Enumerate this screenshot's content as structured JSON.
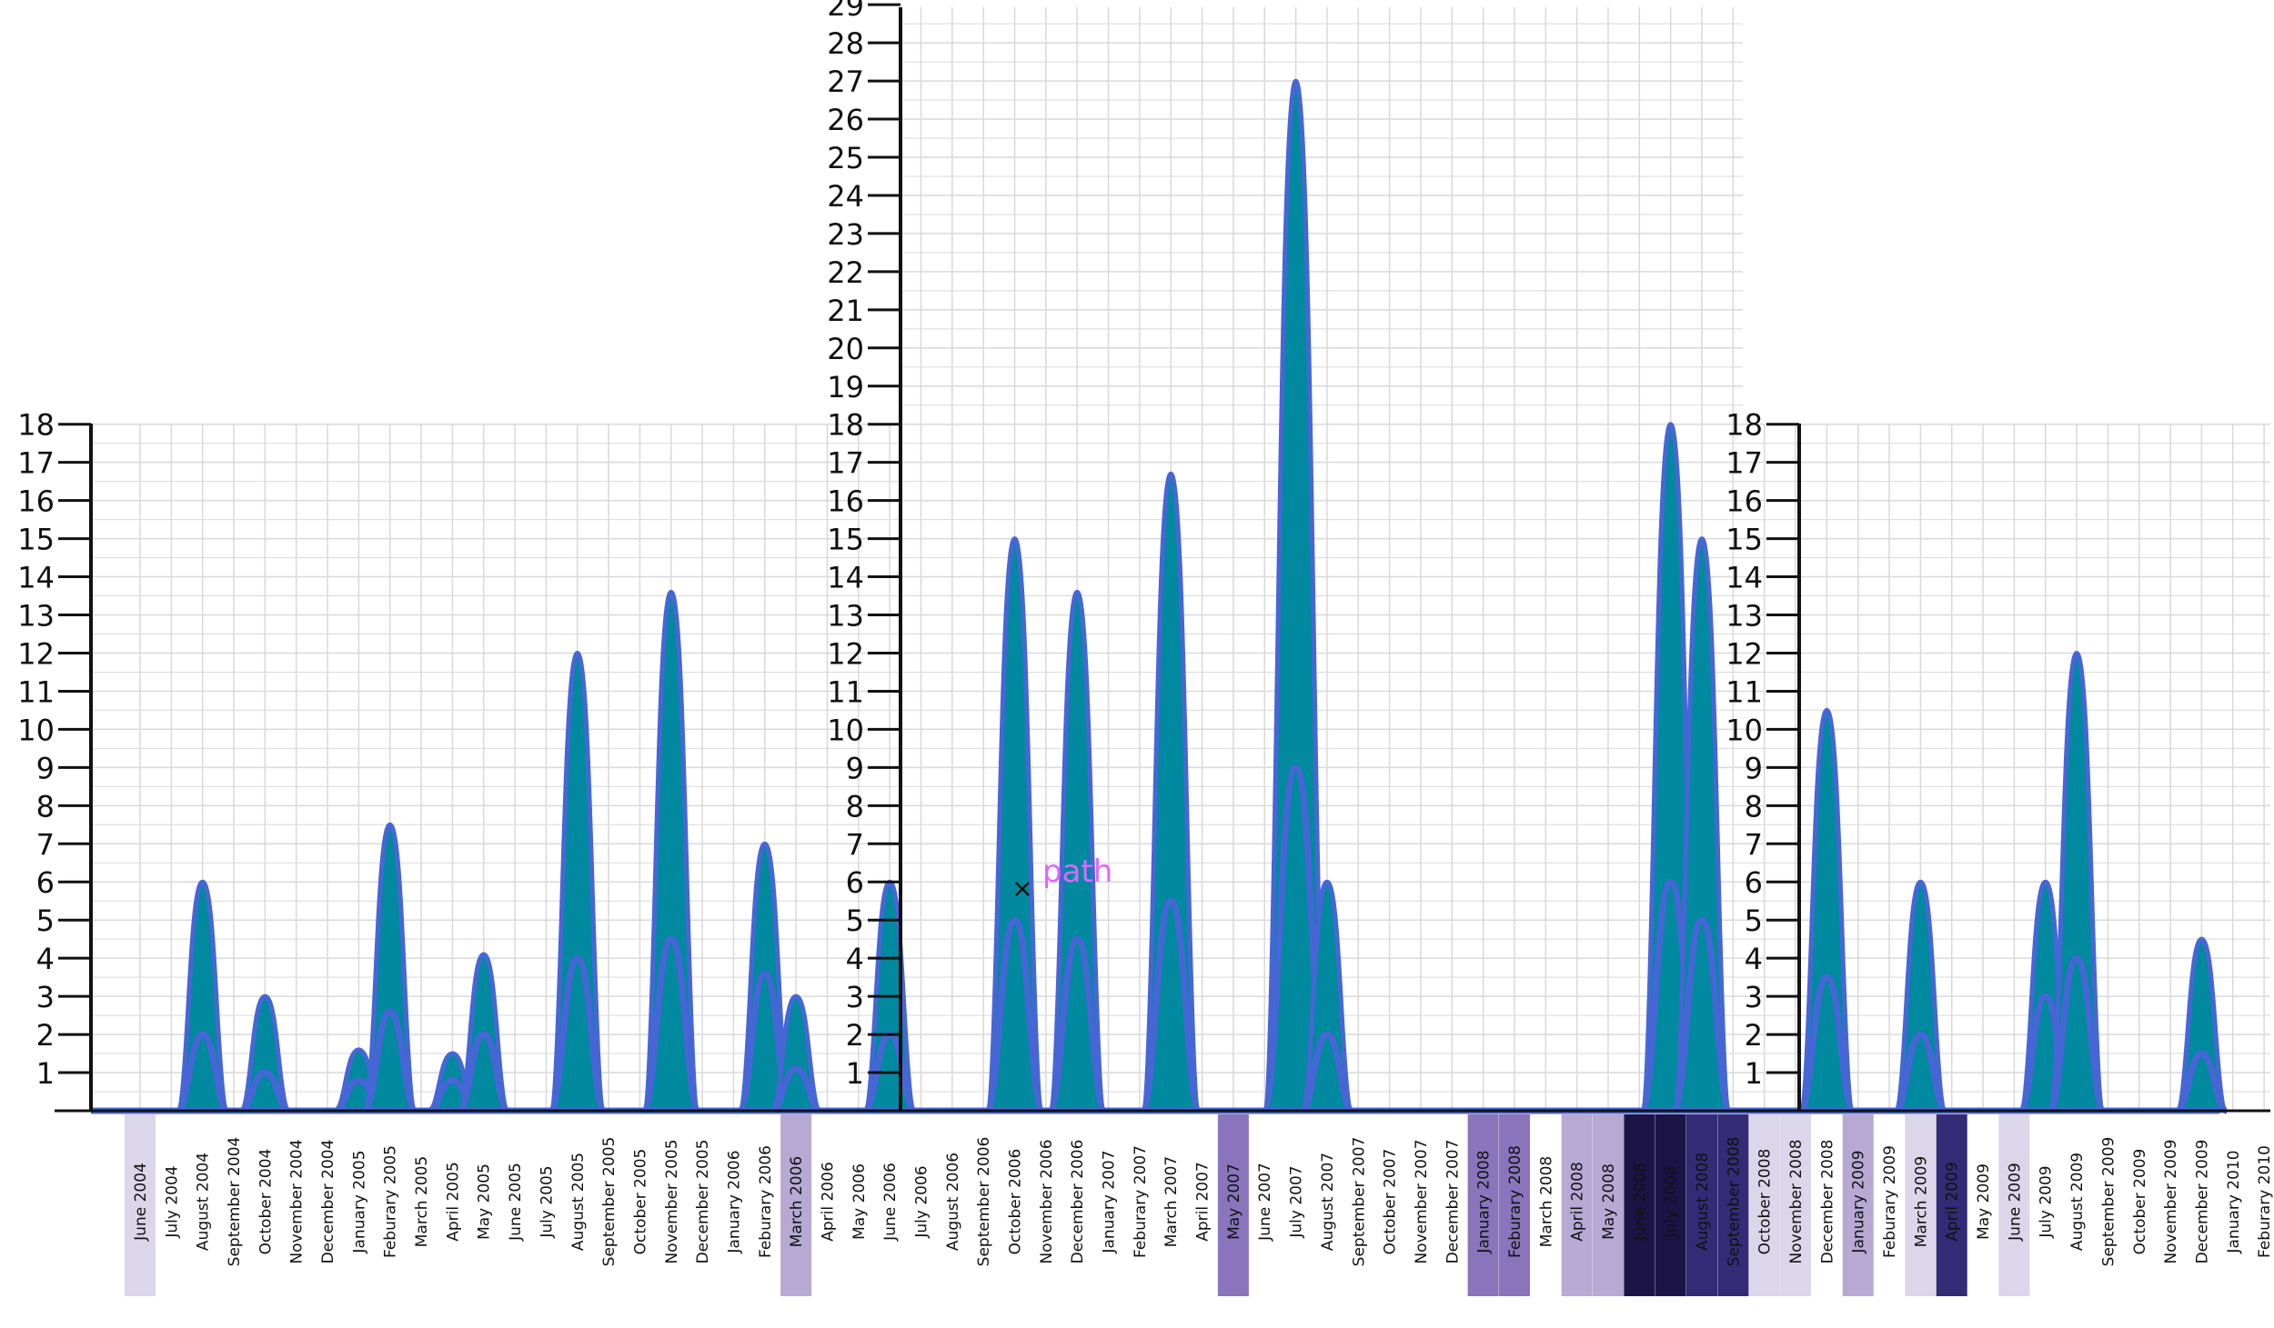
{
  "chart_data": {
    "type": "area",
    "title": "",
    "xlabel": "",
    "ylabel": "",
    "grid": true,
    "colors": {
      "band_fill": "#00899f",
      "line": "#4766d6",
      "grid": "#d9d9d9",
      "axis": "#111111",
      "cursor_label": "#e066ff"
    },
    "months": [
      "June 2004",
      "July 2004",
      "August 2004",
      "September 2004",
      "October 2004",
      "November 2004",
      "December 2004",
      "January 2005",
      "Feburary 2005",
      "March 2005",
      "April 2005",
      "May 2005",
      "June 2005",
      "July 2005",
      "August 2005",
      "September 2005",
      "October 2005",
      "November 2005",
      "December 2005",
      "January 2006",
      "Feburary 2006",
      "March 2006",
      "April 2006",
      "May 2006",
      "June 2006",
      "July 2006",
      "August 2006",
      "September 2006",
      "October 2006",
      "November 2006",
      "December 2006",
      "January 2007",
      "Feburary 2007",
      "March 2007",
      "April 2007",
      "May 2007",
      "June 2007",
      "July 2007",
      "August 2007",
      "September 2007",
      "October 2007",
      "November 2007",
      "December 2007",
      "January 2008",
      "Feburary 2008",
      "March 2008",
      "April 2008",
      "May 2008",
      "June 2008",
      "July 2008",
      "August 2008",
      "September 2008",
      "October 2008",
      "November 2008",
      "December 2008",
      "January 2009",
      "Feburary 2009",
      "March 2009",
      "April 2009",
      "May 2009",
      "June 2009",
      "July 2009",
      "August 2009",
      "September 2009",
      "October 2009",
      "November 2009",
      "December 2009",
      "January 2010",
      "Feburary 2010"
    ],
    "month_shading": [
      0.15,
      0,
      0,
      0,
      0,
      0,
      0,
      0,
      0,
      0,
      0,
      0,
      0,
      0,
      0,
      0,
      0,
      0,
      0,
      0,
      0,
      0.35,
      0,
      0,
      0,
      0,
      0,
      0,
      0,
      0,
      0,
      0,
      0,
      0,
      0,
      0.55,
      0,
      0,
      0,
      0,
      0,
      0,
      0,
      0.55,
      0.55,
      0,
      0.35,
      0.35,
      1,
      1,
      0.8,
      0.8,
      0.15,
      0.15,
      0,
      0.35,
      0,
      0.15,
      0.9,
      0,
      0.15,
      0,
      0,
      0,
      0,
      0,
      0,
      0,
      0
    ],
    "peaks": [
      {
        "month": "August 2004",
        "low": 2,
        "high": 6
      },
      {
        "month": "October 2004",
        "low": 1,
        "high": 3
      },
      {
        "month": "January 2005",
        "low": 0.8,
        "high": 1.6
      },
      {
        "month": "Feburary 2005",
        "low": 2.6,
        "high": 7.5
      },
      {
        "month": "April 2005",
        "low": 0.8,
        "high": 1.5
      },
      {
        "month": "May 2005",
        "low": 2,
        "high": 4.1
      },
      {
        "month": "August 2005",
        "low": 4,
        "high": 12
      },
      {
        "month": "November 2005",
        "low": 4.5,
        "high": 13.6
      },
      {
        "month": "Feburary 2006",
        "low": 3.6,
        "high": 7
      },
      {
        "month": "March 2006",
        "low": 1.1,
        "high": 3
      },
      {
        "month": "June 2006",
        "low": 2,
        "high": 6
      },
      {
        "month": "October 2006",
        "low": 5,
        "high": 15
      },
      {
        "month": "December 2006",
        "low": 4.5,
        "high": 13.6
      },
      {
        "month": "March 2007",
        "low": 5.5,
        "high": 16.7
      },
      {
        "month": "July 2007",
        "low": 9,
        "high": 27
      },
      {
        "month": "August 2007",
        "low": 2,
        "high": 6
      },
      {
        "month": "July 2008",
        "low": 6,
        "high": 18
      },
      {
        "month": "August 2008",
        "low": 5,
        "high": 15
      },
      {
        "month": "December 2008",
        "low": 3.5,
        "high": 10.5
      },
      {
        "month": "March 2009",
        "low": 2,
        "high": 6
      },
      {
        "month": "July 2009",
        "low": 3,
        "high": 6
      },
      {
        "month": "August 2009",
        "low": 4,
        "high": 12
      },
      {
        "month": "December 2009",
        "low": 1.5,
        "high": 4.5
      }
    ],
    "panels": [
      {
        "name": "left",
        "ylim": [
          0,
          18
        ],
        "yticks": [
          1,
          2,
          3,
          4,
          5,
          6,
          7,
          8,
          9,
          10,
          11,
          12,
          13,
          14,
          15,
          16,
          17,
          18
        ]
      },
      {
        "name": "middle",
        "ylim": [
          0,
          29
        ],
        "yticks": [
          1,
          2,
          3,
          4,
          5,
          6,
          7,
          8,
          9,
          10,
          11,
          12,
          13,
          14,
          15,
          16,
          17,
          18,
          19,
          20,
          21,
          22,
          23,
          24,
          25,
          26,
          27,
          28,
          29
        ]
      },
      {
        "name": "right",
        "ylim": [
          0,
          18
        ],
        "yticks": [
          1,
          2,
          3,
          4,
          5,
          6,
          7,
          8,
          9,
          10,
          11,
          12,
          13,
          14,
          15,
          16,
          17,
          18
        ]
      }
    ],
    "cursor_label": "path"
  }
}
